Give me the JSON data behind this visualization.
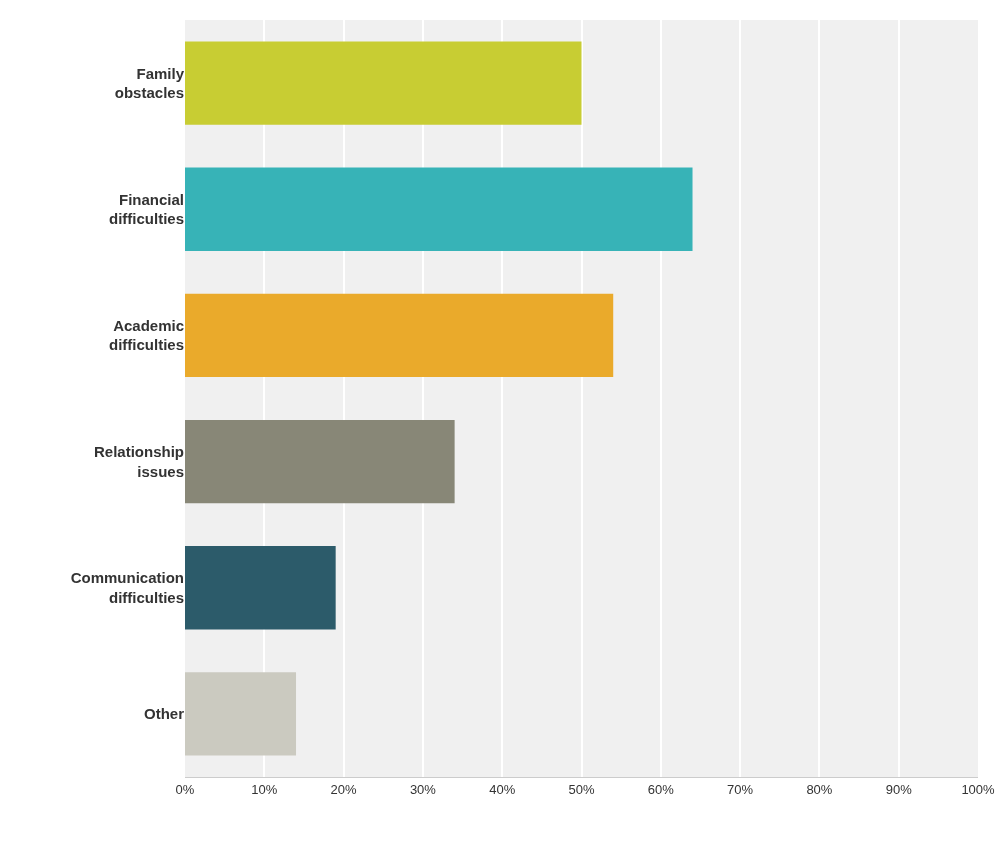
{
  "chart_data": {
    "type": "bar",
    "orientation": "horizontal",
    "categories": [
      "Family obstacles",
      "Financial difficulties",
      "Academic difficulties",
      "Relationship issues",
      "Communication difficulties",
      "Other"
    ],
    "values": [
      50,
      64,
      54,
      34,
      19,
      14
    ],
    "colors": [
      "#c8cd33",
      "#37b3b7",
      "#eaaa2b",
      "#888777",
      "#2c5b6a",
      "#cbcac0"
    ],
    "xlim": [
      0,
      100
    ],
    "xticks": [
      {
        "value": 0,
        "label": "0%"
      },
      {
        "value": 10,
        "label": "10%"
      },
      {
        "value": 20,
        "label": "20%"
      },
      {
        "value": 30,
        "label": "30%"
      },
      {
        "value": 40,
        "label": "40%"
      },
      {
        "value": 50,
        "label": "50%"
      },
      {
        "value": 60,
        "label": "60%"
      },
      {
        "value": 70,
        "label": "70%"
      },
      {
        "value": 80,
        "label": "80%"
      },
      {
        "value": 90,
        "label": "90%"
      },
      {
        "value": 100,
        "label": "100%"
      }
    ],
    "grid": "x"
  }
}
